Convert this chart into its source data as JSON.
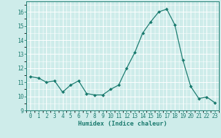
{
  "x": [
    0,
    1,
    2,
    3,
    4,
    5,
    6,
    7,
    8,
    9,
    10,
    11,
    12,
    13,
    14,
    15,
    16,
    17,
    18,
    19,
    20,
    21,
    22,
    23
  ],
  "y": [
    11.4,
    11.3,
    11.0,
    11.1,
    10.3,
    10.8,
    11.1,
    10.2,
    10.1,
    10.1,
    10.5,
    10.8,
    12.0,
    13.1,
    14.5,
    15.3,
    16.0,
    16.2,
    15.1,
    12.6,
    10.7,
    9.85,
    9.95,
    9.55
  ],
  "xlabel": "Humidex (Indice chaleur)",
  "xlim": [
    -0.5,
    23.5
  ],
  "ylim": [
    9,
    16.75
  ],
  "yticks": [
    9,
    10,
    11,
    12,
    13,
    14,
    15,
    16
  ],
  "xticks": [
    0,
    1,
    2,
    3,
    4,
    5,
    6,
    7,
    8,
    9,
    10,
    11,
    12,
    13,
    14,
    15,
    16,
    17,
    18,
    19,
    20,
    21,
    22,
    23
  ],
  "line_color": "#1a7a6e",
  "marker": "D",
  "marker_size": 2.0,
  "bg_color": "#ceecea",
  "grid_major_color": "#ffffff",
  "label_fontsize": 6.5,
  "tick_fontsize": 5.5
}
